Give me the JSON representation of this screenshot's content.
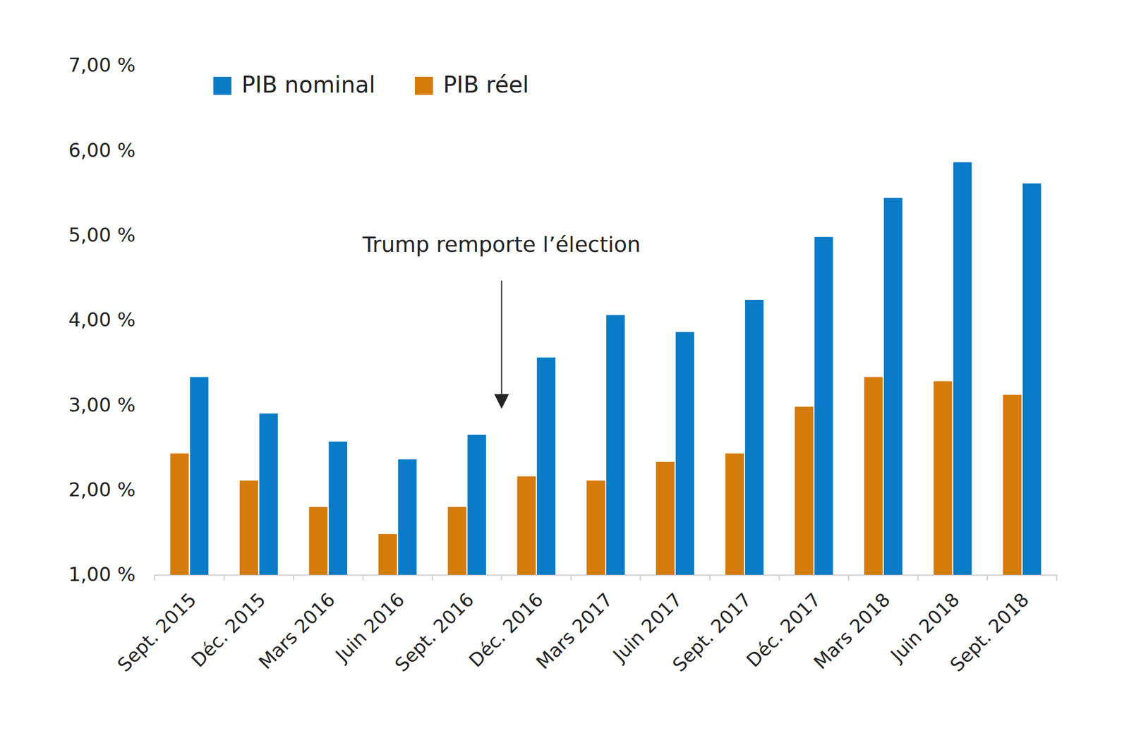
{
  "chart_data": {
    "type": "bar",
    "annotation": "Trump remporte l’élection",
    "categories": [
      "Sept. 2015",
      "Déc. 2015",
      "Mars 2016",
      "Juin 2016",
      "Sept. 2016",
      "Déc. 2016",
      "Mars 2017",
      "Juin 2017",
      "Sept. 2017",
      "Déc. 2017",
      "Mars 2018",
      "Juin 2018",
      "Sept. 2018"
    ],
    "series": [
      {
        "name": "PIB nominal",
        "color": "#0a7bc6",
        "values": [
          3.33,
          2.9,
          2.57,
          2.36,
          2.65,
          3.56,
          4.06,
          3.86,
          4.24,
          4.98,
          5.44,
          5.86,
          5.61
        ]
      },
      {
        "name": "PIB réel",
        "color": "#d47b0c",
        "values": [
          2.43,
          2.11,
          1.8,
          1.48,
          1.8,
          2.16,
          2.11,
          2.33,
          2.43,
          2.98,
          3.33,
          3.28,
          3.12
        ]
      }
    ],
    "ylim": [
      1,
      7
    ],
    "yticks": [
      {
        "value": 1,
        "label": "1,00 %"
      },
      {
        "value": 2,
        "label": "2,00 %"
      },
      {
        "value": 3,
        "label": "3,00 %"
      },
      {
        "value": 4,
        "label": "4,00 %"
      },
      {
        "value": 5,
        "label": "5,00 %"
      },
      {
        "value": 6,
        "label": "6,00 %"
      },
      {
        "value": 7,
        "label": "7,00 %"
      }
    ],
    "legend": "top-left",
    "grid": false
  }
}
